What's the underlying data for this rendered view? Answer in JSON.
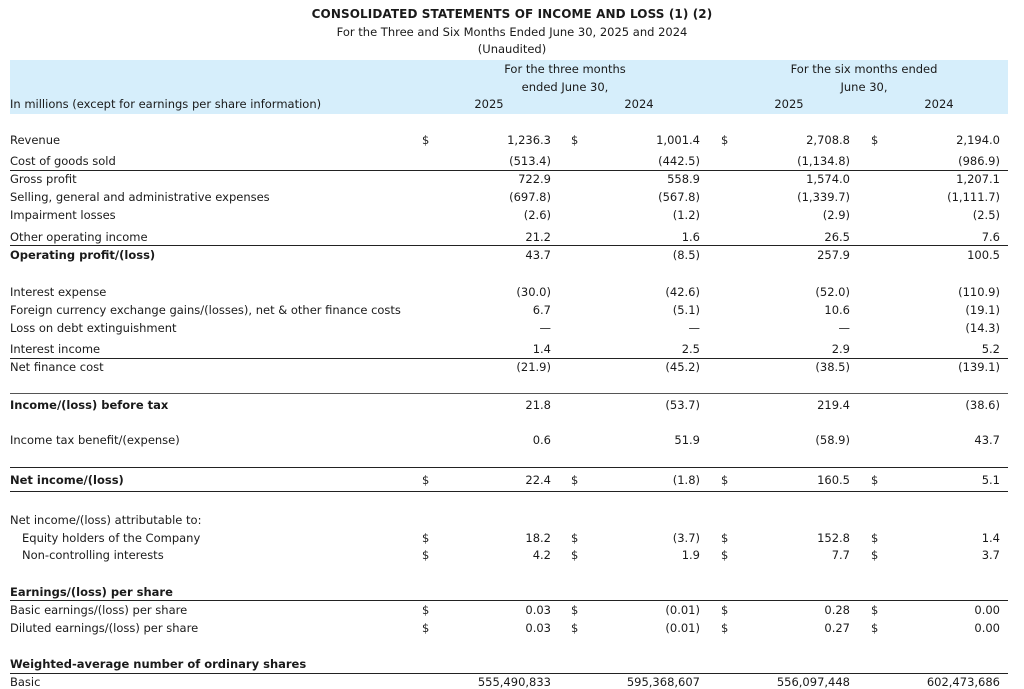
{
  "title": "CONSOLIDATED STATEMENTS OF INCOME AND LOSS (1) (2)",
  "subtitle": "For the Three and Six Months Ended June 30, 2025 and 2024",
  "unaudited": "(Unaudited)",
  "header": {
    "unit_label": "In millions (except for earnings per share information)",
    "three_months_line1": "For the three months",
    "three_months_line2": "ended June 30,",
    "six_months_line1": "For the six months ended",
    "six_months_line2": "June 30,",
    "years": [
      "2025",
      "2024",
      "2025",
      "2024"
    ]
  },
  "rows": [
    {
      "label": "Revenue",
      "bold": false,
      "dollar": [
        true,
        true,
        true,
        true
      ],
      "values": [
        "1,236.3",
        "1,001.4",
        "2,708.8",
        "2,194.0"
      ]
    },
    {
      "label": "Cost of goods sold",
      "bold": false,
      "dollar": [
        false,
        false,
        false,
        false
      ],
      "values": [
        "(513.4)",
        "(442.5)",
        "(1,134.8)",
        "(986.9)"
      ]
    },
    {
      "label": "Gross profit",
      "bold": false,
      "dollar": [
        false,
        false,
        false,
        false
      ],
      "values": [
        "722.9",
        "558.9",
        "1,574.0",
        "1,207.1"
      ]
    },
    {
      "label": "Selling, general and administrative expenses",
      "bold": false,
      "dollar": [
        false,
        false,
        false,
        false
      ],
      "values": [
        "(697.8)",
        "(567.8)",
        "(1,339.7)",
        "(1,111.7)"
      ]
    },
    {
      "label": "Impairment losses",
      "bold": false,
      "dollar": [
        false,
        false,
        false,
        false
      ],
      "values": [
        "(2.6)",
        "(1.2)",
        "(2.9)",
        "(2.5)"
      ]
    },
    {
      "label": "Other operating income",
      "bold": false,
      "dollar": [
        false,
        false,
        false,
        false
      ],
      "values": [
        "21.2",
        "1.6",
        "26.5",
        "7.6"
      ]
    },
    {
      "label": "Operating profit/(loss)",
      "bold": true,
      "dollar": [
        false,
        false,
        false,
        false
      ],
      "values": [
        "43.7",
        "(8.5)",
        "257.9",
        "100.5"
      ]
    },
    {
      "label": "Interest expense",
      "bold": false,
      "dollar": [
        false,
        false,
        false,
        false
      ],
      "values": [
        "(30.0)",
        "(42.6)",
        "(52.0)",
        "(110.9)"
      ]
    },
    {
      "label": "Foreign currency exchange gains/(losses), net & other finance costs",
      "bold": false,
      "dollar": [
        false,
        false,
        false,
        false
      ],
      "values": [
        "6.7",
        "(5.1)",
        "10.6",
        "(19.1)"
      ]
    },
    {
      "label": "Loss on debt extinguishment",
      "bold": false,
      "dollar": [
        false,
        false,
        false,
        false
      ],
      "values": [
        "—",
        "—",
        "—",
        "(14.3)"
      ]
    },
    {
      "label": "Interest income",
      "bold": false,
      "dollar": [
        false,
        false,
        false,
        false
      ],
      "values": [
        "1.4",
        "2.5",
        "2.9",
        "5.2"
      ]
    },
    {
      "label": "Net finance cost",
      "bold": false,
      "dollar": [
        false,
        false,
        false,
        false
      ],
      "values": [
        "(21.9)",
        "(45.2)",
        "(38.5)",
        "(139.1)"
      ]
    },
    {
      "label": "Income/(loss) before tax",
      "bold": true,
      "dollar": [
        false,
        false,
        false,
        false
      ],
      "values": [
        "21.8",
        "(53.7)",
        "219.4",
        "(38.6)"
      ]
    },
    {
      "label": "Income tax benefit/(expense)",
      "bold": false,
      "dollar": [
        false,
        false,
        false,
        false
      ],
      "values": [
        "0.6",
        "51.9",
        "(58.9)",
        "43.7"
      ]
    },
    {
      "label": "Net income/(loss)",
      "bold": true,
      "dollar": [
        true,
        true,
        true,
        true
      ],
      "values": [
        "22.4",
        "(1.8)",
        "160.5",
        "5.1"
      ]
    },
    {
      "label": "Net income/(loss) attributable to:",
      "bold": false,
      "dollar": [
        false,
        false,
        false,
        false
      ],
      "values": [
        "",
        "",
        "",
        ""
      ]
    },
    {
      "label": "Equity holders of the Company",
      "bold": false,
      "indent": true,
      "dollar": [
        true,
        true,
        true,
        true
      ],
      "values": [
        "18.2",
        "(3.7)",
        "152.8",
        "1.4"
      ]
    },
    {
      "label": "Non-controlling interests",
      "bold": false,
      "indent": true,
      "dollar": [
        true,
        true,
        true,
        true
      ],
      "values": [
        "4.2",
        "1.9",
        "7.7",
        "3.7"
      ]
    },
    {
      "label": "Earnings/(loss) per share",
      "bold": true,
      "dollar": [
        false,
        false,
        false,
        false
      ],
      "values": [
        "",
        "",
        "",
        ""
      ]
    },
    {
      "label": "Basic earnings/(loss) per share",
      "bold": false,
      "dollar": [
        true,
        true,
        true,
        true
      ],
      "values": [
        "0.03",
        "(0.01)",
        "0.28",
        "0.00"
      ]
    },
    {
      "label": "Diluted earnings/(loss) per share",
      "bold": false,
      "dollar": [
        true,
        true,
        true,
        true
      ],
      "values": [
        "0.03",
        "(0.01)",
        "0.27",
        "0.00"
      ]
    },
    {
      "label": "Weighted-average number of ordinary shares",
      "bold": true,
      "dollar": [
        false,
        false,
        false,
        false
      ],
      "values": [
        "",
        "",
        "",
        ""
      ]
    },
    {
      "label": "Basic",
      "bold": false,
      "dollar": [
        false,
        false,
        false,
        false
      ],
      "values": [
        "555,490,833",
        "595,368,607",
        "556,097,448",
        "602,473,686"
      ]
    }
  ],
  "currency_symbol": "$"
}
